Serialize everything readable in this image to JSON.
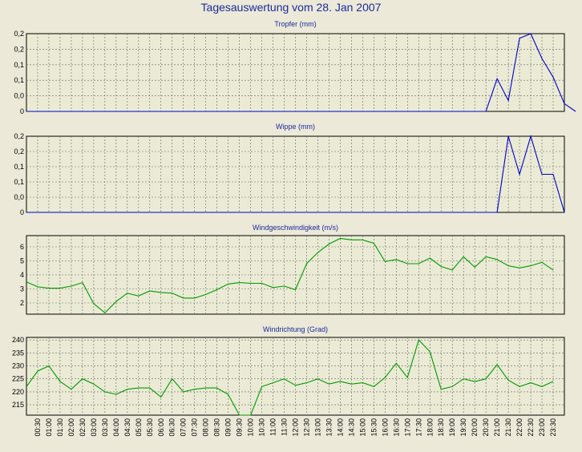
{
  "title": "Tagesauswertung vom 28. Jan 2007",
  "colors": {
    "background": "#ece9d8",
    "plot_bg": "#ebebd5",
    "title": "#1a2a9c",
    "blue_series": "#0000cc",
    "green_series": "#009900"
  },
  "x_labels": [
    "00:30",
    "01:00",
    "01:30",
    "02:00",
    "02:30",
    "03:00",
    "03:30",
    "04:00",
    "04:30",
    "05:00",
    "05:30",
    "06:00",
    "06:30",
    "07:00",
    "07:30",
    "08:00",
    "08:30",
    "09:00",
    "09:30",
    "10:00",
    "10:30",
    "11:00",
    "11:30",
    "12:00",
    "12:30",
    "13:00",
    "13:30",
    "14:00",
    "14:30",
    "15:00",
    "15:30",
    "16:00",
    "16:30",
    "17:00",
    "17:30",
    "18:00",
    "18:30",
    "19:00",
    "19:30",
    "20:00",
    "20:30",
    "21:00",
    "21:30",
    "22:00",
    "22:30",
    "23:00",
    "23:30"
  ],
  "chart_data": [
    {
      "type": "line",
      "title": "Tropfer (mm)",
      "color": "#0000cc",
      "ylim": [
        0,
        0.25
      ],
      "yticks": [
        0,
        0.05,
        0.1,
        0.15,
        0.2,
        0.25
      ],
      "ytick_labels": [
        "0",
        "0,0",
        "0,1",
        "0,1",
        "0,2",
        "0,2"
      ],
      "x_start": "00:00",
      "values": [
        0,
        0,
        0,
        0,
        0,
        0,
        0,
        0,
        0,
        0,
        0,
        0,
        0,
        0,
        0,
        0,
        0,
        0,
        0,
        0,
        0,
        0,
        0,
        0,
        0,
        0,
        0,
        0,
        0,
        0,
        0,
        0,
        0,
        0,
        0,
        0,
        0,
        0,
        0,
        0,
        0,
        0.0,
        0.105,
        0.035,
        0.235,
        0.25,
        0.17,
        0.11,
        0.025,
        0.0
      ]
    },
    {
      "type": "line",
      "title": "Wippe (mm)",
      "color": "#0000cc",
      "ylim": [
        0,
        0.25
      ],
      "yticks": [
        0,
        0.05,
        0.1,
        0.15,
        0.2,
        0.25
      ],
      "ytick_labels": [
        "0",
        "0,0",
        "0,1",
        "0,1",
        "0,2",
        "0,2"
      ],
      "x_start": "00:00",
      "values": [
        0,
        0,
        0,
        0,
        0,
        0,
        0,
        0,
        0,
        0,
        0,
        0,
        0,
        0,
        0,
        0,
        0,
        0,
        0,
        0,
        0,
        0,
        0,
        0,
        0,
        0,
        0,
        0,
        0,
        0,
        0,
        0,
        0,
        0,
        0,
        0,
        0,
        0,
        0,
        0,
        0,
        0,
        0,
        0.25,
        0.125,
        0.25,
        0.125,
        0.125,
        0.0
      ]
    },
    {
      "type": "line",
      "title": "Windgeschwindigkeit (m/s)",
      "color": "#009900",
      "ylim": [
        1.2,
        6.8
      ],
      "yticks": [
        2,
        3,
        4,
        5,
        6
      ],
      "ytick_labels": [
        "2",
        "3",
        "4",
        "5",
        "6"
      ],
      "x_start": "00:00",
      "values": [
        3.5,
        3.15,
        3.05,
        3.05,
        3.2,
        3.45,
        1.95,
        1.3,
        2.1,
        2.7,
        2.5,
        2.85,
        2.75,
        2.7,
        2.35,
        2.35,
        2.6,
        2.95,
        3.35,
        3.45,
        3.4,
        3.4,
        3.1,
        3.2,
        2.95,
        4.8,
        5.6,
        6.2,
        6.6,
        6.5,
        6.5,
        6.25,
        4.95,
        5.1,
        4.8,
        4.8,
        5.2,
        4.6,
        4.35,
        5.3,
        4.55,
        5.3,
        5.1,
        4.65,
        4.5,
        4.65,
        4.9,
        4.35
      ]
    },
    {
      "type": "line",
      "title": "Windrichtung (Grad)",
      "color": "#009900",
      "ylim": [
        211,
        241
      ],
      "yticks": [
        215,
        220,
        225,
        230,
        235,
        240
      ],
      "ytick_labels": [
        "215",
        "220",
        "225",
        "230",
        "235",
        "240"
      ],
      "x_start": "00:00",
      "values": [
        222,
        228,
        230,
        224,
        221,
        225,
        223,
        220,
        219,
        221,
        221.5,
        221.5,
        218,
        225,
        220,
        221,
        221.5,
        221.5,
        219,
        211,
        211,
        222,
        223.5,
        225,
        222.5,
        223.5,
        225,
        223,
        224,
        223,
        223.5,
        222,
        225.5,
        231,
        225.5,
        240,
        235.5,
        221,
        222,
        225,
        224,
        225,
        230.5,
        224.5,
        222,
        223.5,
        222,
        224
      ]
    }
  ]
}
